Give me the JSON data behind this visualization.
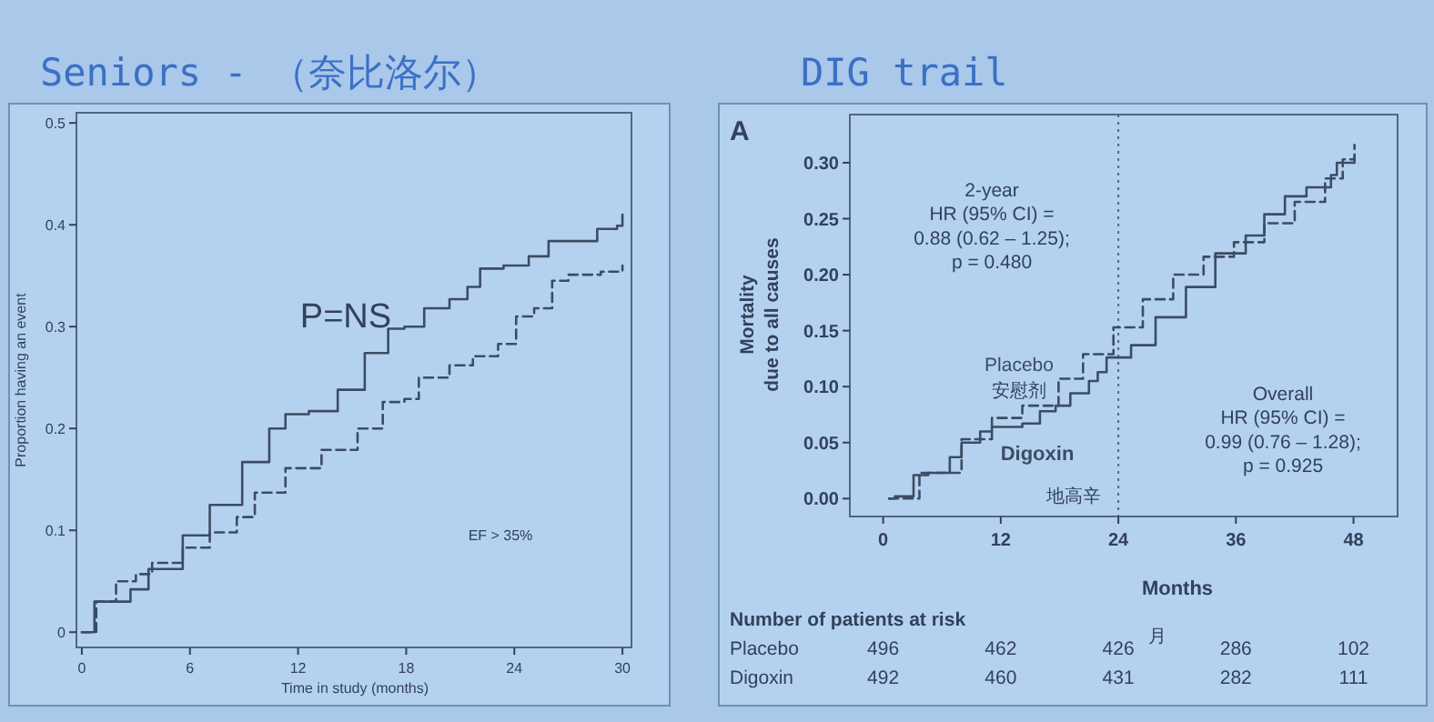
{
  "chart_data": [
    {
      "type": "step",
      "title": "Seniors - （奈比洛尔）",
      "xlabel": "Time in study (months)",
      "ylabel": "Proportion having an event",
      "xlim": [
        -0.3,
        30.5
      ],
      "ylim": [
        -0.015,
        0.51
      ],
      "xticks": [
        0,
        6,
        12,
        18,
        24,
        30
      ],
      "yticks": [
        0,
        0.1,
        0.2,
        0.3,
        0.4,
        0.5
      ],
      "annotations": [
        "P=NS",
        "EF > 35%"
      ],
      "x": [
        0,
        0.7,
        2.7,
        3.7,
        5.6,
        7.1,
        8.9,
        10.4,
        11.3,
        12.6,
        14.2,
        15.7,
        17.0,
        17.9,
        19.0,
        20.4,
        21.4,
        22.1,
        23.4,
        24.8,
        25.9,
        28.1,
        28.6,
        29.7,
        30
      ],
      "series": [
        {
          "color": "#3d4c63",
          "line_style": "solid",
          "values": [
            0,
            0.03,
            0.042,
            0.062,
            0.095,
            0.125,
            0.167,
            0.2,
            0.214,
            0.217,
            0.238,
            0.274,
            0.298,
            0.3,
            0.318,
            0.327,
            0.339,
            0.357,
            0.36,
            0.369,
            0.384,
            0.384,
            0.396,
            0.399,
            0.41
          ]
        },
        {
          "color": "#3d4c63",
          "line_style": "dashed",
          "x": [
            0,
            0.8,
            1.9,
            3,
            3.9,
            5.6,
            7.1,
            8.6,
            9.6,
            11.3,
            13.3,
            15.3,
            16.7,
            17.9,
            18.7,
            20.4,
            21.7,
            23.1,
            24.1,
            25.1,
            26.1,
            27,
            28.8,
            30
          ],
          "values": [
            0,
            0.03,
            0.05,
            0.057,
            0.068,
            0.083,
            0.098,
            0.113,
            0.137,
            0.161,
            0.179,
            0.2,
            0.226,
            0.229,
            0.25,
            0.262,
            0.271,
            0.283,
            0.31,
            0.318,
            0.345,
            0.351,
            0.354,
            0.36
          ]
        }
      ]
    },
    {
      "type": "step",
      "title": "DIG trail",
      "xlabel": "Months",
      "ylabel": "Mortality\ndue to all causes",
      "xlim": [
        -3.4,
        52.5
      ],
      "ylim": [
        -0.016,
        0.343
      ],
      "xticks": [
        0,
        12,
        24,
        36,
        48
      ],
      "yticks": [
        {
          "value": 0,
          "label": "0.00"
        },
        {
          "value": 0.05,
          "label": "0.05"
        },
        {
          "value": 0.1,
          "label": "0.10"
        },
        {
          "value": 0.15,
          "label": "0.15"
        },
        {
          "value": 0.2,
          "label": "0.20"
        },
        {
          "value": 0.25,
          "label": "0.25"
        },
        {
          "value": 0.3,
          "label": "0.30"
        }
      ],
      "ref_lines": [
        {
          "axis": "x",
          "value": 24,
          "line_style": "dotted"
        }
      ],
      "annotations": [
        "A",
        "2-year\nHR (95% CI) =\n0.88 (0.62 – 1.25);\np = 0.480",
        "Overall\nHR (95% CI) =\n0.99 (0.76 – 1.28);\np = 0.925",
        "安慰剂",
        "地高辛",
        "Number of patients at risk",
        "Placebo 496 462 426 286 102",
        "Digoxin 492 460 431 282 111",
        "月"
      ],
      "series": [
        {
          "name": "Placebo",
          "color": "#3d4c63",
          "line_style": "dashed",
          "x": [
            0.6,
            3.7,
            8,
            11.1,
            14.2,
            17.9,
            20.4,
            23.5,
            26.5,
            29.6,
            32.7,
            35.8,
            38.9,
            42,
            45.1,
            46.9,
            48.1
          ],
          "values": [
            0,
            0.023,
            0.053,
            0.072,
            0.083,
            0.107,
            0.129,
            0.153,
            0.178,
            0.2,
            0.216,
            0.229,
            0.246,
            0.265,
            0.286,
            0.303,
            0.316
          ]
        },
        {
          "name": "Digoxin",
          "color": "#3d4c63",
          "line_style": "solid",
          "x": [
            0.6,
            1.2,
            3.1,
            4.6,
            6.8,
            8,
            9.9,
            11.1,
            14.2,
            16,
            17.6,
            19.1,
            21,
            21.9,
            22.8,
            25.3,
            27.8,
            30.9,
            33.9,
            37,
            38.9,
            41,
            43.2,
            45.7,
            46.3,
            48.1
          ],
          "values": [
            0,
            0.002,
            0.021,
            0.023,
            0.037,
            0.05,
            0.06,
            0.064,
            0.067,
            0.078,
            0.083,
            0.094,
            0.105,
            0.113,
            0.126,
            0.137,
            0.162,
            0.189,
            0.219,
            0.235,
            0.254,
            0.27,
            0.278,
            0.289,
            0.3,
            0.305
          ]
        }
      ]
    }
  ]
}
